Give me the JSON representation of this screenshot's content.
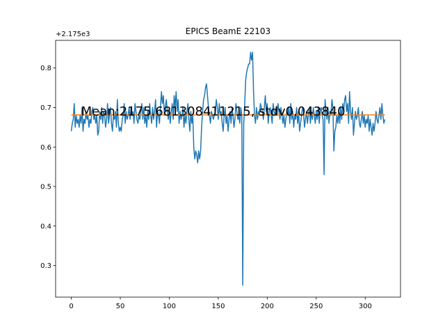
{
  "chart_data": {
    "type": "line",
    "title": "EPICS BeamE 22103",
    "xlabel": "",
    "ylabel": "",
    "y_offset_label": "+2.175e3",
    "y_offset": 2175,
    "xlim": [
      -16,
      336
    ],
    "ylim": [
      0.22,
      0.87
    ],
    "x_ticks": [
      0,
      50,
      100,
      150,
      200,
      250,
      300
    ],
    "y_ticks": [
      0.3,
      0.4,
      0.5,
      0.6,
      0.7,
      0.8
    ],
    "y_tick_labels": [
      "0.3",
      "0.4",
      "0.5",
      "0.6",
      "0.7",
      "0.8"
    ],
    "grid": false,
    "annotation": {
      "text": "Mean:2175.681308411215, stdv0.043840",
      "x": 10,
      "y": 0.68
    },
    "series": [
      {
        "color": "#1f77b4",
        "x_start": 0,
        "x_step": 1,
        "values": [
          0.64,
          0.66,
          0.67,
          0.71,
          0.65,
          0.68,
          0.66,
          0.67,
          0.65,
          0.68,
          0.66,
          0.7,
          0.64,
          0.67,
          0.66,
          0.69,
          0.67,
          0.68,
          0.65,
          0.67,
          0.66,
          0.69,
          0.7,
          0.67,
          0.68,
          0.66,
          0.68,
          0.63,
          0.64,
          0.69,
          0.67,
          0.7,
          0.66,
          0.69,
          0.68,
          0.65,
          0.67,
          0.71,
          0.66,
          0.68,
          0.7,
          0.66,
          0.64,
          0.68,
          0.67,
          0.69,
          0.65,
          0.72,
          0.66,
          0.64,
          0.65,
          0.64,
          0.67,
          0.68,
          0.71,
          0.66,
          0.69,
          0.67,
          0.68,
          0.7,
          0.67,
          0.7,
          0.68,
          0.69,
          0.66,
          0.71,
          0.69,
          0.67,
          0.66,
          0.68,
          0.67,
          0.69,
          0.71,
          0.67,
          0.7,
          0.66,
          0.68,
          0.65,
          0.69,
          0.67,
          0.71,
          0.68,
          0.66,
          0.7,
          0.67,
          0.69,
          0.72,
          0.65,
          0.69,
          0.68,
          0.66,
          0.7,
          0.74,
          0.71,
          0.73,
          0.68,
          0.7,
          0.72,
          0.69,
          0.67,
          0.7,
          0.66,
          0.69,
          0.71,
          0.67,
          0.73,
          0.7,
          0.74,
          0.69,
          0.72,
          0.66,
          0.69,
          0.67,
          0.68,
          0.7,
          0.65,
          0.68,
          0.66,
          0.69,
          0.71,
          0.67,
          0.64,
          0.69,
          0.66,
          0.68,
          0.6,
          0.57,
          0.59,
          0.58,
          0.56,
          0.59,
          0.57,
          0.59,
          0.65,
          0.69,
          0.72,
          0.73,
          0.75,
          0.76,
          0.73,
          0.7,
          0.68,
          0.66,
          0.69,
          0.68,
          0.67,
          0.68,
          0.69,
          0.72,
          0.7,
          0.67,
          0.71,
          0.68,
          0.69,
          0.66,
          0.64,
          0.68,
          0.7,
          0.66,
          0.68,
          0.64,
          0.67,
          0.69,
          0.66,
          0.7,
          0.68,
          0.65,
          0.67,
          0.71,
          0.69,
          0.67,
          0.68,
          0.66,
          0.7,
          0.68,
          0.25,
          0.66,
          0.71,
          0.77,
          0.79,
          0.8,
          0.81,
          0.81,
          0.84,
          0.82,
          0.84,
          0.74,
          0.68,
          0.66,
          0.7,
          0.67,
          0.69,
          0.68,
          0.71,
          0.7,
          0.69,
          0.67,
          0.7,
          0.73,
          0.69,
          0.71,
          0.66,
          0.69,
          0.7,
          0.68,
          0.66,
          0.71,
          0.69,
          0.68,
          0.7,
          0.68,
          0.71,
          0.69,
          0.67,
          0.7,
          0.68,
          0.66,
          0.68,
          0.65,
          0.67,
          0.69,
          0.68,
          0.7,
          0.66,
          0.71,
          0.67,
          0.69,
          0.65,
          0.68,
          0.67,
          0.7,
          0.66,
          0.69,
          0.64,
          0.66,
          0.68,
          0.7,
          0.69,
          0.65,
          0.67,
          0.69,
          0.66,
          0.68,
          0.7,
          0.66,
          0.69,
          0.67,
          0.7,
          0.68,
          0.66,
          0.69,
          0.67,
          0.7,
          0.66,
          0.69,
          0.7,
          0.68,
          0.67,
          0.53,
          0.72,
          0.69,
          0.67,
          0.7,
          0.66,
          0.69,
          0.68,
          0.72,
          0.7,
          0.59,
          0.64,
          0.65,
          0.68,
          0.66,
          0.69,
          0.66,
          0.7,
          0.67,
          0.71,
          0.69,
          0.72,
          0.73,
          0.69,
          0.71,
          0.66,
          0.74,
          0.69,
          0.67,
          0.7,
          0.63,
          0.66,
          0.69,
          0.67,
          0.68,
          0.7,
          0.66,
          0.65,
          0.67,
          0.69,
          0.66,
          0.68,
          0.65,
          0.67,
          0.66,
          0.68,
          0.64,
          0.67,
          0.65,
          0.63,
          0.66,
          0.64,
          0.66,
          0.69,
          0.67,
          0.66,
          0.68,
          0.7,
          0.67,
          0.71,
          0.68,
          0.66,
          0.67
        ]
      },
      {
        "color": "#ff7f0e",
        "x": [
          0,
          320
        ],
        "values": [
          0.681308,
          0.681308
        ]
      }
    ]
  }
}
